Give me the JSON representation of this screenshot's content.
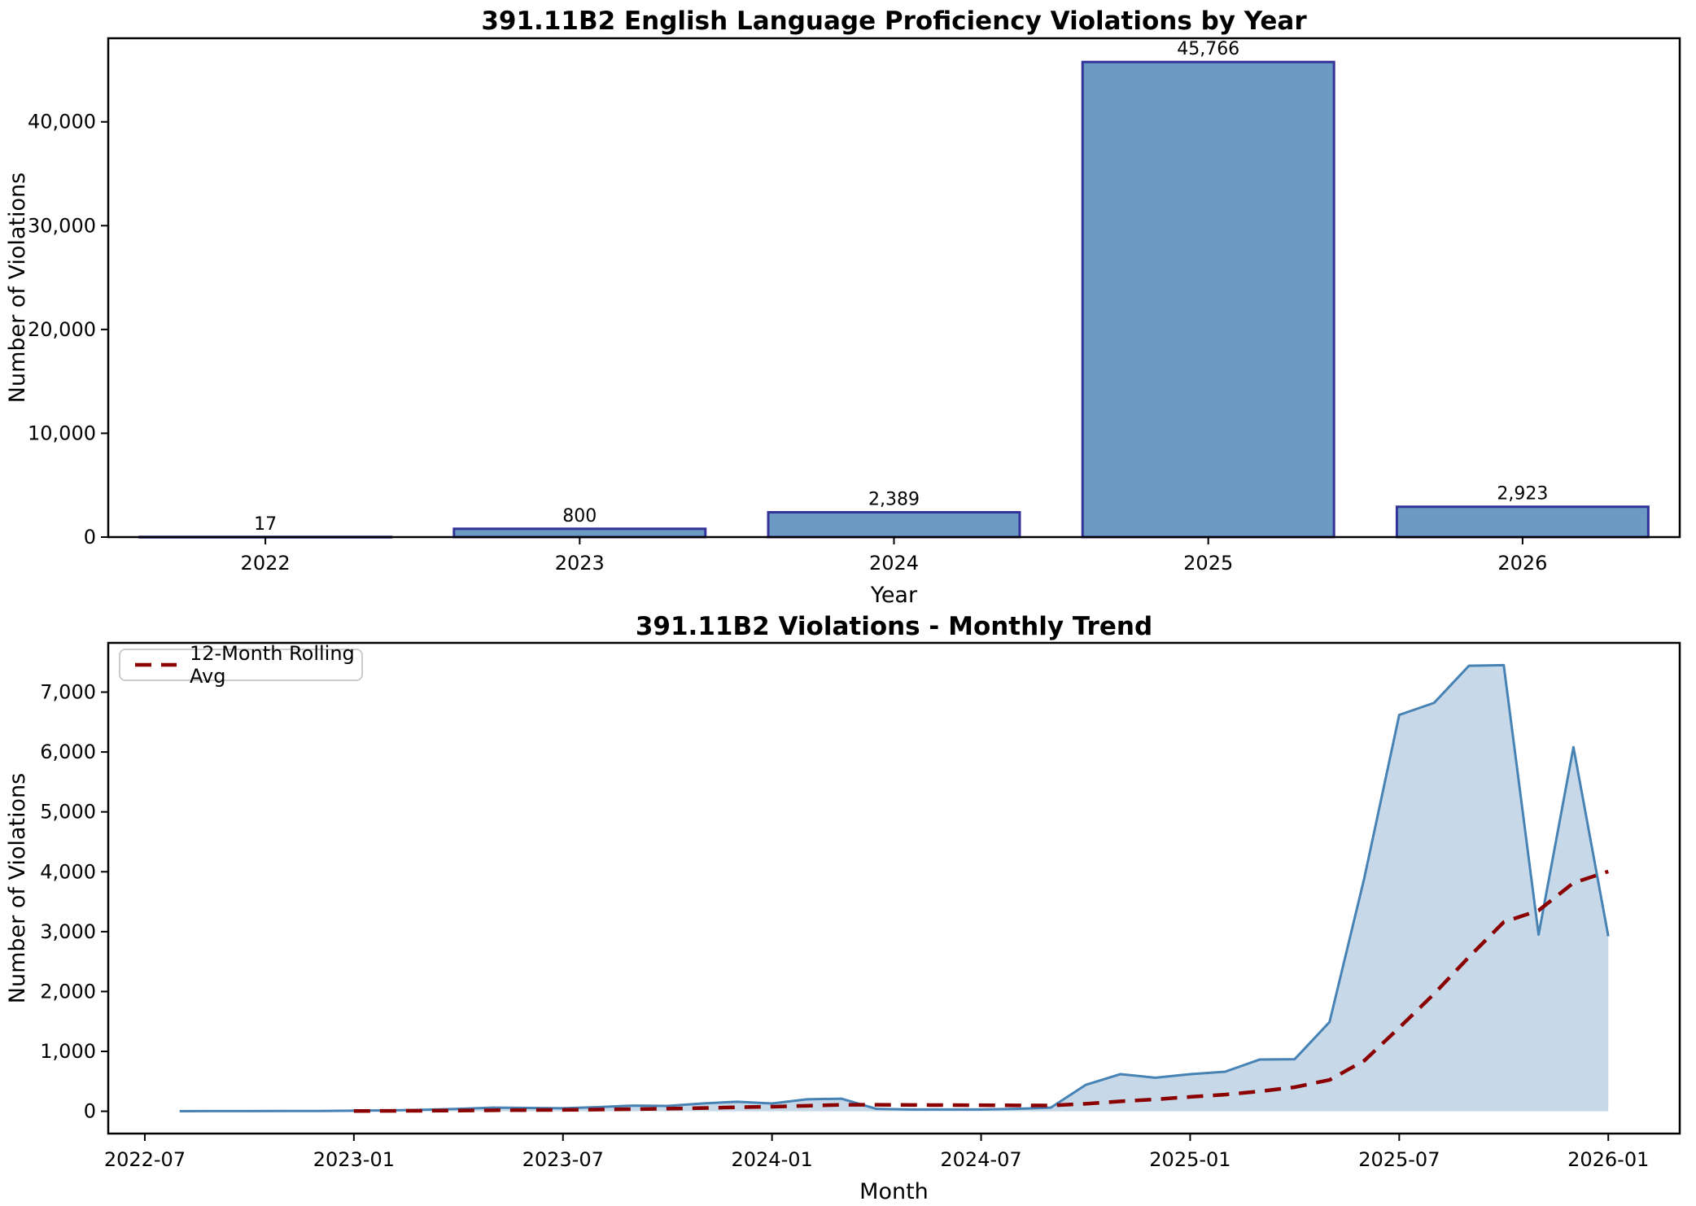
{
  "colors": {
    "bar_fill": "#6b9bc3",
    "bar_edge": "#333399",
    "line": "#4682b4",
    "area_fill": "#c7d9e8",
    "rolling_line": "#8b0000",
    "spine": "#000000",
    "legend_border": "#cccccc",
    "text": "#000000"
  },
  "chart_data": [
    {
      "id": "yearly",
      "type": "bar",
      "title": "391.11B2 English Language Proficiency Violations by Year",
      "xlabel": "Year",
      "ylabel": "Number of Violations",
      "categories": [
        "2022",
        "2023",
        "2024",
        "2025",
        "2026"
      ],
      "values": [
        17,
        800,
        2389,
        45766,
        2923
      ],
      "bar_labels": [
        "17",
        "800",
        "2,389",
        "45,766",
        "2,923"
      ],
      "yticks": [
        0,
        10000,
        20000,
        30000,
        40000
      ],
      "ytick_labels": [
        "0",
        "10,000",
        "20,000",
        "30,000",
        "40,000"
      ],
      "ylim": [
        0,
        48054
      ],
      "xlim": [
        -0.5,
        4.5
      ],
      "bar_width_frac": 0.8,
      "grid": false,
      "legend": null
    },
    {
      "id": "monthly",
      "type": "area-line",
      "title": "391.11B2 Violations - Monthly Trend",
      "xlabel": "Month",
      "ylabel": "Number of Violations",
      "months": [
        "2022-08",
        "2022-09",
        "2022-10",
        "2022-11",
        "2022-12",
        "2023-01",
        "2023-02",
        "2023-03",
        "2023-04",
        "2023-05",
        "2023-06",
        "2023-07",
        "2023-08",
        "2023-09",
        "2023-10",
        "2023-11",
        "2023-12",
        "2024-01",
        "2024-02",
        "2024-03",
        "2024-04",
        "2024-05",
        "2024-06",
        "2024-07",
        "2024-08",
        "2024-09",
        "2024-10",
        "2024-11",
        "2024-12",
        "2025-01",
        "2025-02",
        "2025-03",
        "2025-04",
        "2025-05",
        "2025-06",
        "2025-07",
        "2025-08",
        "2025-09",
        "2025-10",
        "2025-11",
        "2025-12",
        "2026-01"
      ],
      "values": [
        2,
        3,
        3,
        4,
        5,
        10,
        15,
        25,
        40,
        60,
        55,
        50,
        70,
        95,
        90,
        130,
        160,
        130,
        200,
        210,
        40,
        30,
        30,
        30,
        40,
        60,
        440,
        620,
        560,
        620,
        660,
        865,
        870,
        1490,
        3900,
        6620,
        6820,
        7440,
        7450,
        2950,
        6081,
        2923
      ],
      "rolling": {
        "label": "12-Month Rolling Avg",
        "start_index": 5,
        "values": [
          4.5,
          6,
          8.4,
          11.9,
          16.7,
          20.2,
          22.7,
          28.3,
          36,
          43.3,
          53.8,
          66.7,
          76.7,
          92.1,
          107.5,
          107.5,
          105,
          102.9,
          101.3,
          98.8,
          95.8,
          125,
          165.8,
          199.2,
          240,
          278.3,
          332.9,
          402.1,
          523.8,
          846.3,
          1395.4,
          1960.4,
          2575.4,
          3159.6,
          3353.8,
          3813.8,
          4005.8
        ]
      },
      "xticks": [
        {
          "label": "2022-07",
          "m": -1
        },
        {
          "label": "2023-01",
          "m": 5
        },
        {
          "label": "2023-07",
          "m": 11
        },
        {
          "label": "2024-01",
          "m": 17
        },
        {
          "label": "2024-07",
          "m": 23
        },
        {
          "label": "2025-01",
          "m": 29
        },
        {
          "label": "2025-07",
          "m": 35
        },
        {
          "label": "2026-01",
          "m": 41
        }
      ],
      "yticks": [
        0,
        1000,
        2000,
        3000,
        4000,
        5000,
        6000,
        7000
      ],
      "ytick_labels": [
        "0",
        "1,000",
        "2,000",
        "3,000",
        "4,000",
        "5,000",
        "6,000",
        "7,000"
      ],
      "ylim": [
        -372.5,
        7822.5
      ],
      "xlim": [
        -2.05,
        43.05
      ],
      "grid": false,
      "legend": {
        "location": "upper-left"
      }
    }
  ]
}
